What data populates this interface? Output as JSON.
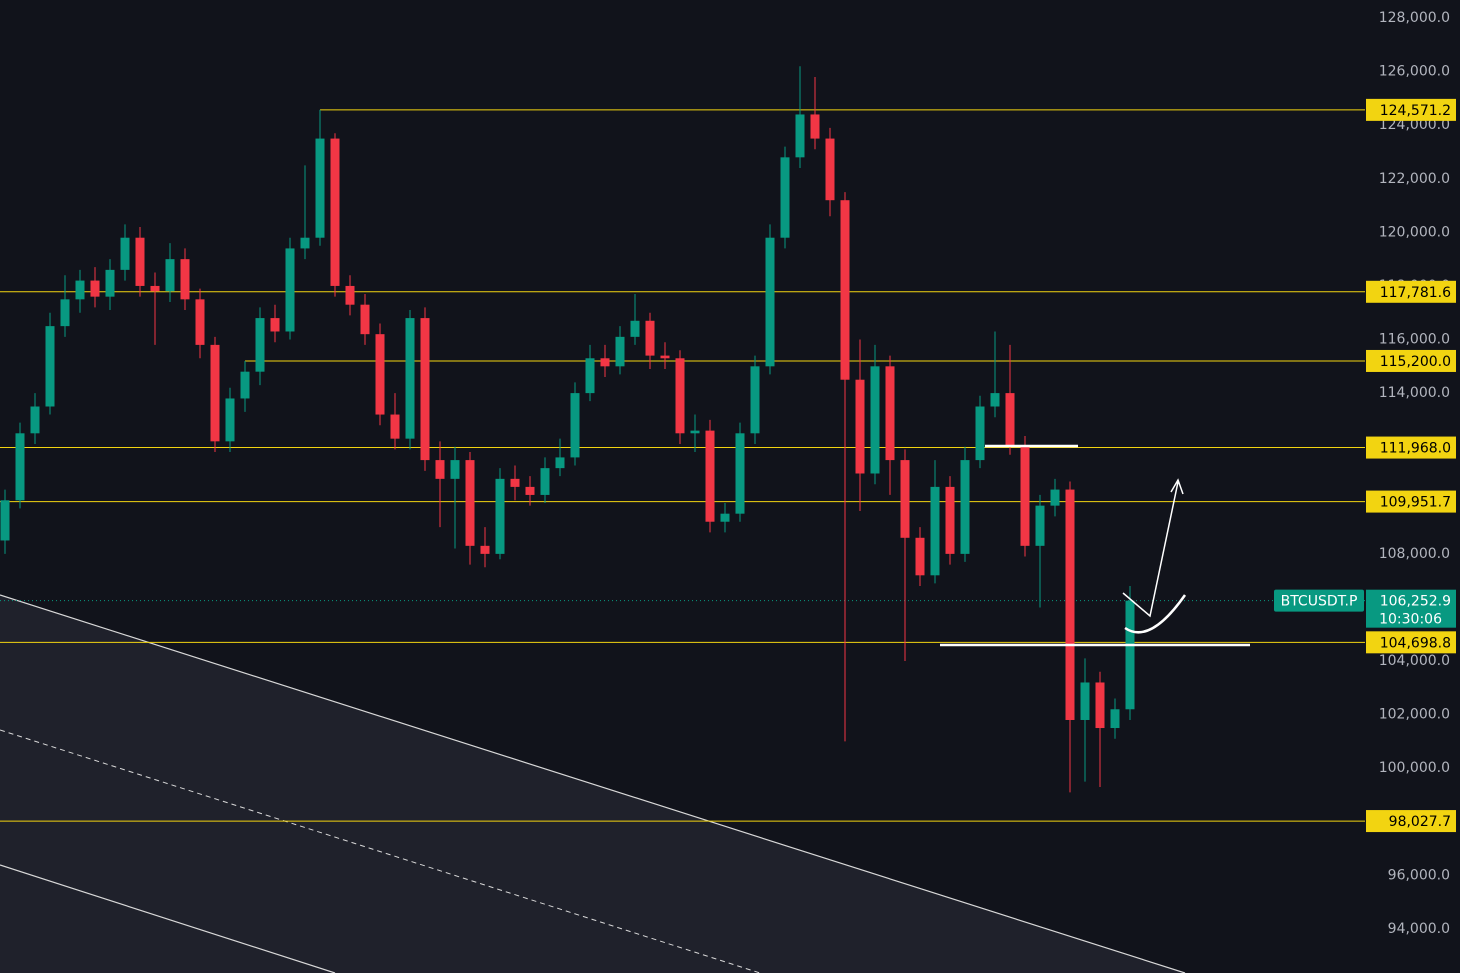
{
  "chart_data": {
    "type": "candlestick",
    "up_color": "#089981",
    "down_color": "#f23645",
    "level_color": "#f2d411",
    "ylim": [
      92357,
      128672
    ],
    "yticks": [
      {
        "value": 94000,
        "label": "94,000.0"
      },
      {
        "value": 96000,
        "label": "96,000.0"
      },
      {
        "value": 98000,
        "label": "98,000.0"
      },
      {
        "value": 100000,
        "label": "100,000.0"
      },
      {
        "value": 102000,
        "label": "102,000.0"
      },
      {
        "value": 104000,
        "label": "104,000.0"
      },
      {
        "value": 106000,
        "label": "106,000.0"
      },
      {
        "value": 108000,
        "label": "108,000.0"
      },
      {
        "value": 110000,
        "label": "110,000.0"
      },
      {
        "value": 112000,
        "label": "112,000.0"
      },
      {
        "value": 114000,
        "label": "114,000.0"
      },
      {
        "value": 116000,
        "label": "116,000.0"
      },
      {
        "value": 118000,
        "label": "118,000.0"
      },
      {
        "value": 120000,
        "label": "120,000.0"
      },
      {
        "value": 122000,
        "label": "122,000.0"
      },
      {
        "value": 124000,
        "label": "124,000.0"
      },
      {
        "value": 126000,
        "label": "126,000.0"
      },
      {
        "value": 128000,
        "label": "128,000.0"
      }
    ],
    "levels": [
      {
        "value": 124571.2,
        "label": "124,571.2"
      },
      {
        "value": 117781.6,
        "label": "117,781.6"
      },
      {
        "value": 115200.0,
        "label": "115,200.0"
      },
      {
        "value": 111968.0,
        "label": "111,968.0"
      },
      {
        "value": 109951.7,
        "label": "109,951.7"
      },
      {
        "value": 104698.8,
        "label": "104,698.8"
      },
      {
        "value": 98027.7,
        "label": "98,027.7"
      }
    ],
    "last_price": {
      "value": 106252.9,
      "label": "106,252.9",
      "symbol": "BTCUSDT.P",
      "countdown": "10:30:06"
    },
    "ohlc": [
      [
        108500,
        110400,
        108000,
        110000
      ],
      [
        110000,
        112900,
        109700,
        112500
      ],
      [
        112500,
        114000,
        112100,
        113500
      ],
      [
        113500,
        117000,
        113200,
        116500
      ],
      [
        116500,
        118400,
        116100,
        117500
      ],
      [
        117500,
        118600,
        117000,
        118200
      ],
      [
        118200,
        118700,
        117200,
        117600
      ],
      [
        117600,
        119000,
        117100,
        118600
      ],
      [
        118600,
        120300,
        118200,
        119800
      ],
      [
        119800,
        120200,
        117600,
        118000
      ],
      [
        118000,
        118500,
        115800,
        117800
      ],
      [
        117800,
        119600,
        117400,
        119000
      ],
      [
        119000,
        119400,
        117100,
        117500
      ],
      [
        117500,
        117900,
        115300,
        115800
      ],
      [
        115800,
        116100,
        111800,
        112200
      ],
      [
        112200,
        114200,
        111800,
        113800
      ],
      [
        113800,
        115200,
        113300,
        114800
      ],
      [
        114800,
        117200,
        114300,
        116800
      ],
      [
        116800,
        117300,
        115900,
        116300
      ],
      [
        116300,
        119800,
        116000,
        119400
      ],
      [
        119400,
        122500,
        119000,
        119800
      ],
      [
        119800,
        124571.2,
        119500,
        123500
      ],
      [
        123500,
        123700,
        117600,
        118000
      ],
      [
        118000,
        118400,
        116900,
        117300
      ],
      [
        117300,
        117700,
        115800,
        116200
      ],
      [
        116200,
        116600,
        112800,
        113200
      ],
      [
        113200,
        114000,
        111900,
        112300
      ],
      [
        112300,
        117100,
        111900,
        116800
      ],
      [
        116800,
        117200,
        111100,
        111500
      ],
      [
        111500,
        112200,
        109000,
        110800
      ],
      [
        110800,
        112000,
        108200,
        111500
      ],
      [
        111500,
        111800,
        107600,
        108300
      ],
      [
        108300,
        109000,
        107500,
        108000
      ],
      [
        108000,
        111200,
        107800,
        110800
      ],
      [
        110800,
        111300,
        110000,
        110500
      ],
      [
        110500,
        110900,
        109800,
        110200
      ],
      [
        110200,
        111600,
        109900,
        111200
      ],
      [
        111200,
        112300,
        110900,
        111600
      ],
      [
        111600,
        114400,
        111300,
        114000
      ],
      [
        114000,
        115800,
        113700,
        115300
      ],
      [
        115300,
        115800,
        114600,
        115000
      ],
      [
        115000,
        116500,
        114700,
        116100
      ],
      [
        116100,
        117700,
        115800,
        116700
      ],
      [
        116700,
        117000,
        114900,
        115400
      ],
      [
        115400,
        115900,
        114900,
        115300
      ],
      [
        115300,
        115600,
        112100,
        112500
      ],
      [
        112500,
        113200,
        111800,
        112600
      ],
      [
        112600,
        113000,
        108800,
        109200
      ],
      [
        109200,
        109900,
        108800,
        109500
      ],
      [
        109500,
        112900,
        109200,
        112500
      ],
      [
        112500,
        115400,
        112100,
        115000
      ],
      [
        115000,
        120300,
        114700,
        119800
      ],
      [
        119800,
        123200,
        119400,
        122800
      ],
      [
        122800,
        126200,
        122400,
        124400
      ],
      [
        124400,
        125800,
        123100,
        123500
      ],
      [
        123500,
        123900,
        120600,
        121200
      ],
      [
        121200,
        121500,
        101000,
        114500
      ],
      [
        114500,
        116000,
        109600,
        111000
      ],
      [
        111000,
        115800,
        110600,
        115000
      ],
      [
        115000,
        115400,
        110200,
        111500
      ],
      [
        111500,
        111900,
        104000,
        108600
      ],
      [
        108600,
        109000,
        106800,
        107200
      ],
      [
        107200,
        111500,
        106900,
        110500
      ],
      [
        110500,
        110900,
        107600,
        108000
      ],
      [
        108000,
        112000,
        107700,
        111500
      ],
      [
        111500,
        113900,
        111200,
        113500
      ],
      [
        113500,
        116300,
        113100,
        114000
      ],
      [
        114000,
        115800,
        111700,
        112000
      ],
      [
        112000,
        112400,
        107900,
        108300
      ],
      [
        108300,
        110200,
        106000,
        109800
      ],
      [
        109800,
        110800,
        109400,
        110400
      ],
      [
        110400,
        110700,
        99100,
        101800
      ],
      [
        101800,
        104100,
        99500,
        103200
      ],
      [
        103200,
        103600,
        99300,
        101500
      ],
      [
        101500,
        102600,
        101100,
        102200
      ],
      [
        102200,
        106800,
        101800,
        106252.9
      ]
    ]
  }
}
